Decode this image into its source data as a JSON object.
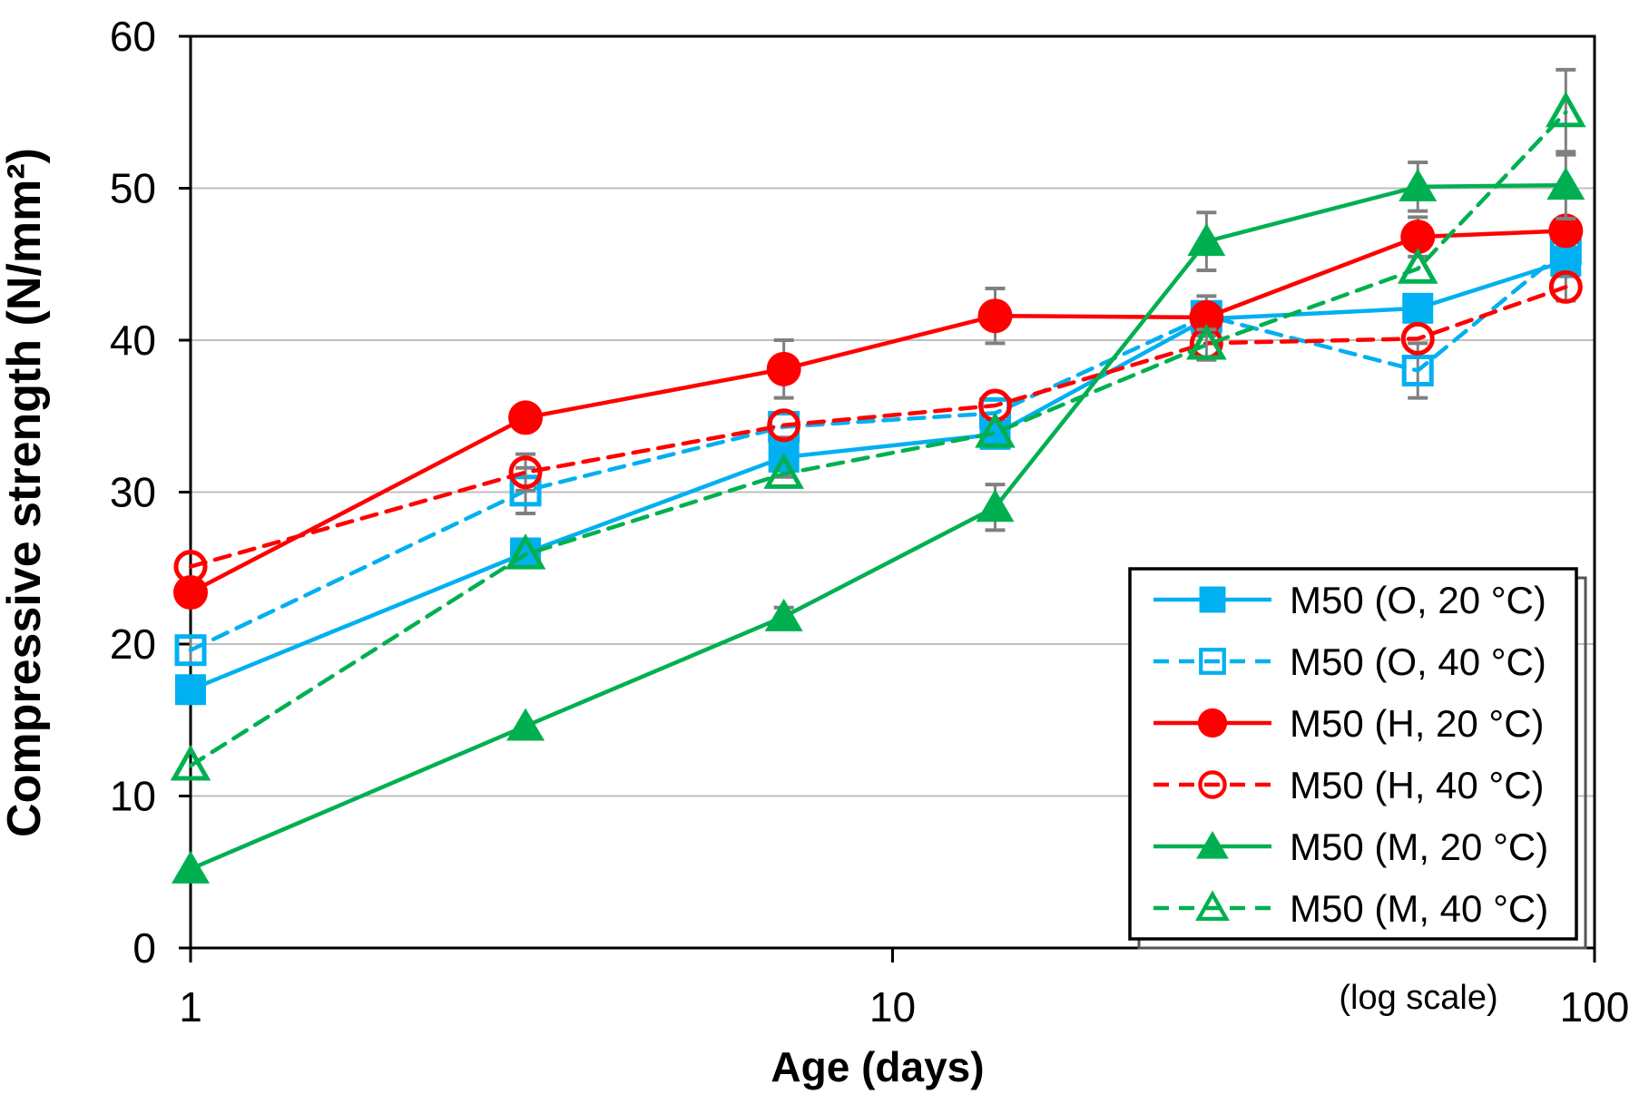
{
  "figure": {
    "ylabel": "Compressive strength (N/mm²)",
    "xlabel": "Age (days)",
    "log_note": "(log scale)"
  },
  "chart_data": {
    "type": "line",
    "x_scale": "log",
    "title": "",
    "xlabel": "Age (days)",
    "ylabel": "Compressive strength (N/mm²)",
    "annotation": "(log scale)",
    "grid": "horizontal-only",
    "legend_position": "inside-lower-right",
    "xlim": [
      1,
      100
    ],
    "ylim": [
      0,
      60
    ],
    "x_ticks": [
      "1",
      "10",
      "100"
    ],
    "x_tick_values": [
      1,
      10,
      100
    ],
    "y_ticks": [
      "0",
      "10",
      "20",
      "30",
      "40",
      "50",
      "60"
    ],
    "y_tick_values": [
      0,
      10,
      20,
      30,
      40,
      50,
      60
    ],
    "x": [
      1,
      3,
      7,
      14,
      28,
      56,
      91
    ],
    "series": [
      {
        "name": "M50 (O, 20 °C)",
        "color": "#00B0F0",
        "line": "solid",
        "marker": "square-filled",
        "values": [
          17.0,
          26.0,
          32.3,
          33.8,
          41.4,
          42.1,
          45.2
        ],
        "err": [
          0,
          0,
          1.3,
          0,
          0,
          0,
          1.0
        ]
      },
      {
        "name": "M50 (O, 40 °C)",
        "color": "#00B0F0",
        "line": "dashed",
        "marker": "square-open",
        "values": [
          19.6,
          30.1,
          34.3,
          35.2,
          41.6,
          38.0,
          46.0
        ],
        "err": [
          0.9,
          1.5,
          0,
          0,
          1.3,
          1.8,
          0
        ]
      },
      {
        "name": "M50 (H, 20 °C)",
        "color": "#FF0000",
        "line": "solid",
        "marker": "circle-filled",
        "values": [
          23.4,
          34.9,
          38.1,
          41.6,
          41.5,
          46.8,
          47.2
        ],
        "err": [
          0,
          0,
          1.9,
          1.8,
          0,
          1.3,
          0
        ]
      },
      {
        "name": "M50 (H, 40 °C)",
        "color": "#FF0000",
        "line": "dashed",
        "marker": "circle-open",
        "values": [
          25.1,
          31.3,
          34.4,
          35.7,
          39.8,
          40.1,
          43.5
        ],
        "err": [
          0,
          1.2,
          0,
          0,
          0,
          0,
          0.9
        ]
      },
      {
        "name": "M50 (M, 20 °C)",
        "color": "#00B050",
        "line": "solid",
        "marker": "triangle-filled",
        "values": [
          5.2,
          14.6,
          21.8,
          29.0,
          46.5,
          50.1,
          50.2
        ],
        "err": [
          0,
          0,
          0.6,
          1.5,
          1.9,
          1.6,
          2.2
        ]
      },
      {
        "name": "M50 (M, 40 °C)",
        "color": "#00B050",
        "line": "dashed",
        "marker": "triangle-open",
        "values": [
          12.0,
          25.9,
          31.2,
          33.9,
          39.7,
          44.7,
          55.0
        ],
        "err": [
          0,
          0,
          0,
          0,
          1.0,
          0,
          2.8
        ]
      }
    ],
    "style": {
      "grid_color": "#BFBFBF",
      "axis_color": "#000000",
      "error_bar_color": "#808080",
      "legend_border_color": "#000000",
      "legend_background": "#FFFFFF"
    }
  }
}
